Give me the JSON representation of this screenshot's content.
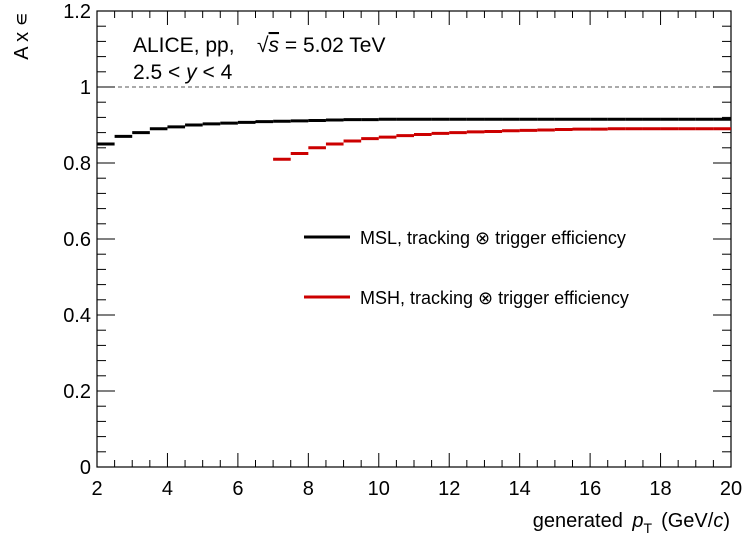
{
  "chart_data": {
    "type": "step",
    "experiment": "ALICE, pp,",
    "energy_prefix": "s",
    "energy_value": " = 5.02 TeV",
    "rapidity": {
      "low": "2.5 <",
      "var": "y",
      "high": "< 4"
    },
    "ylabel": "A x ∊",
    "xlabel": {
      "main": "generated",
      "var": "p",
      "sub": "T",
      "unit_open": "(GeV/",
      "unit_var": "c",
      "unit_close": ")"
    },
    "xlim": [
      2,
      20
    ],
    "ylim": [
      0,
      1.2
    ],
    "xticks": [
      "2",
      "4",
      "6",
      "8",
      "10",
      "12",
      "14",
      "16",
      "18",
      "20"
    ],
    "yticks": [
      "0",
      "0.2",
      "0.4",
      "0.6",
      "0.8",
      "1",
      "1.2"
    ],
    "reference_line": 1.0,
    "bin_width": 0.5,
    "series": [
      {
        "name": "MSL, tracking ⊗ trigger efficiency",
        "color": "#000000",
        "x_start": 2.0,
        "values": [
          0.85,
          0.87,
          0.88,
          0.89,
          0.895,
          0.9,
          0.903,
          0.905,
          0.907,
          0.909,
          0.91,
          0.911,
          0.912,
          0.913,
          0.914,
          0.914,
          0.915,
          0.915,
          0.915,
          0.915,
          0.915,
          0.915,
          0.915,
          0.915,
          0.915,
          0.915,
          0.915,
          0.915,
          0.915,
          0.915,
          0.915,
          0.915,
          0.915,
          0.915,
          0.915,
          0.915
        ]
      },
      {
        "name": "MSH, tracking ⊗ trigger efficiency",
        "color": "#cc0000",
        "x_start": 7.0,
        "values": [
          0.81,
          0.825,
          0.84,
          0.85,
          0.858,
          0.864,
          0.868,
          0.872,
          0.875,
          0.878,
          0.88,
          0.882,
          0.883,
          0.885,
          0.886,
          0.887,
          0.888,
          0.889,
          0.889,
          0.89,
          0.89,
          0.89,
          0.89,
          0.89,
          0.89,
          0.89
        ]
      }
    ]
  }
}
